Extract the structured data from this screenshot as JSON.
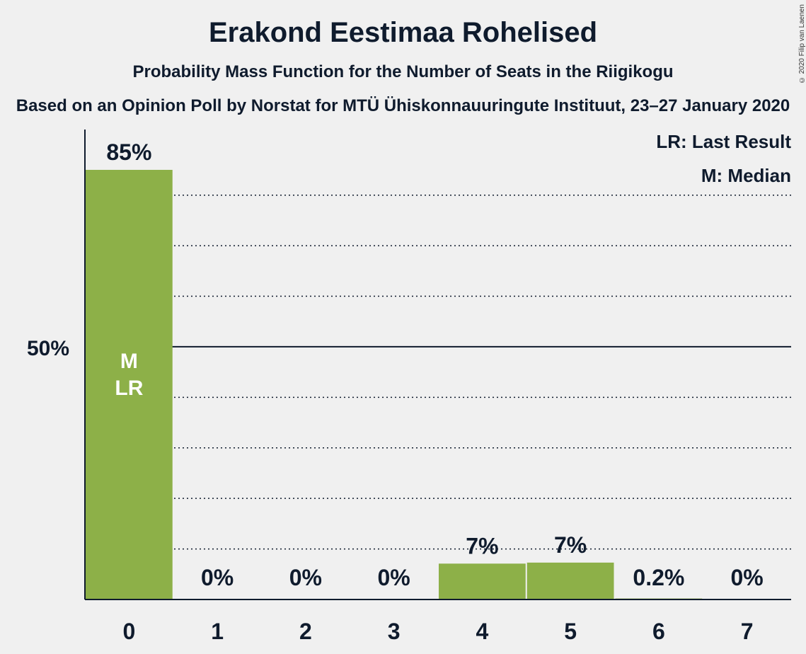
{
  "title": "Erakond Eestimaa Rohelised",
  "subtitle": "Probability Mass Function for the Number of Seats in the Riigikogu",
  "source": "Based on an Opinion Poll by Norstat for MTÜ Ühiskonnauuringute Instituut, 23–27 January 2020",
  "copyright": "© 2020 Filip van Laenen",
  "legend": {
    "last_result": "LR: Last Result",
    "median": "M: Median"
  },
  "colors": {
    "bar": "#8db048",
    "background": "#f0f0f0",
    "text": "#0f1b2d"
  },
  "chart_data": {
    "type": "bar",
    "categories": [
      "0",
      "1",
      "2",
      "3",
      "4",
      "5",
      "6",
      "7"
    ],
    "values": [
      85,
      0,
      0,
      0,
      7.1,
      7.3,
      0.2,
      0
    ],
    "value_labels": [
      "85%",
      "0%",
      "0%",
      "0%",
      "7%",
      "7%",
      "0.2%",
      "0%"
    ],
    "bar_annotations": {
      "0": [
        "M",
        "LR"
      ]
    },
    "ylim": [
      0,
      92
    ],
    "yticks": [
      {
        "value": 50,
        "label": "50%"
      }
    ],
    "gridlines": [
      10,
      20,
      30,
      40,
      60,
      70,
      80
    ],
    "legend_position": "top-right"
  }
}
